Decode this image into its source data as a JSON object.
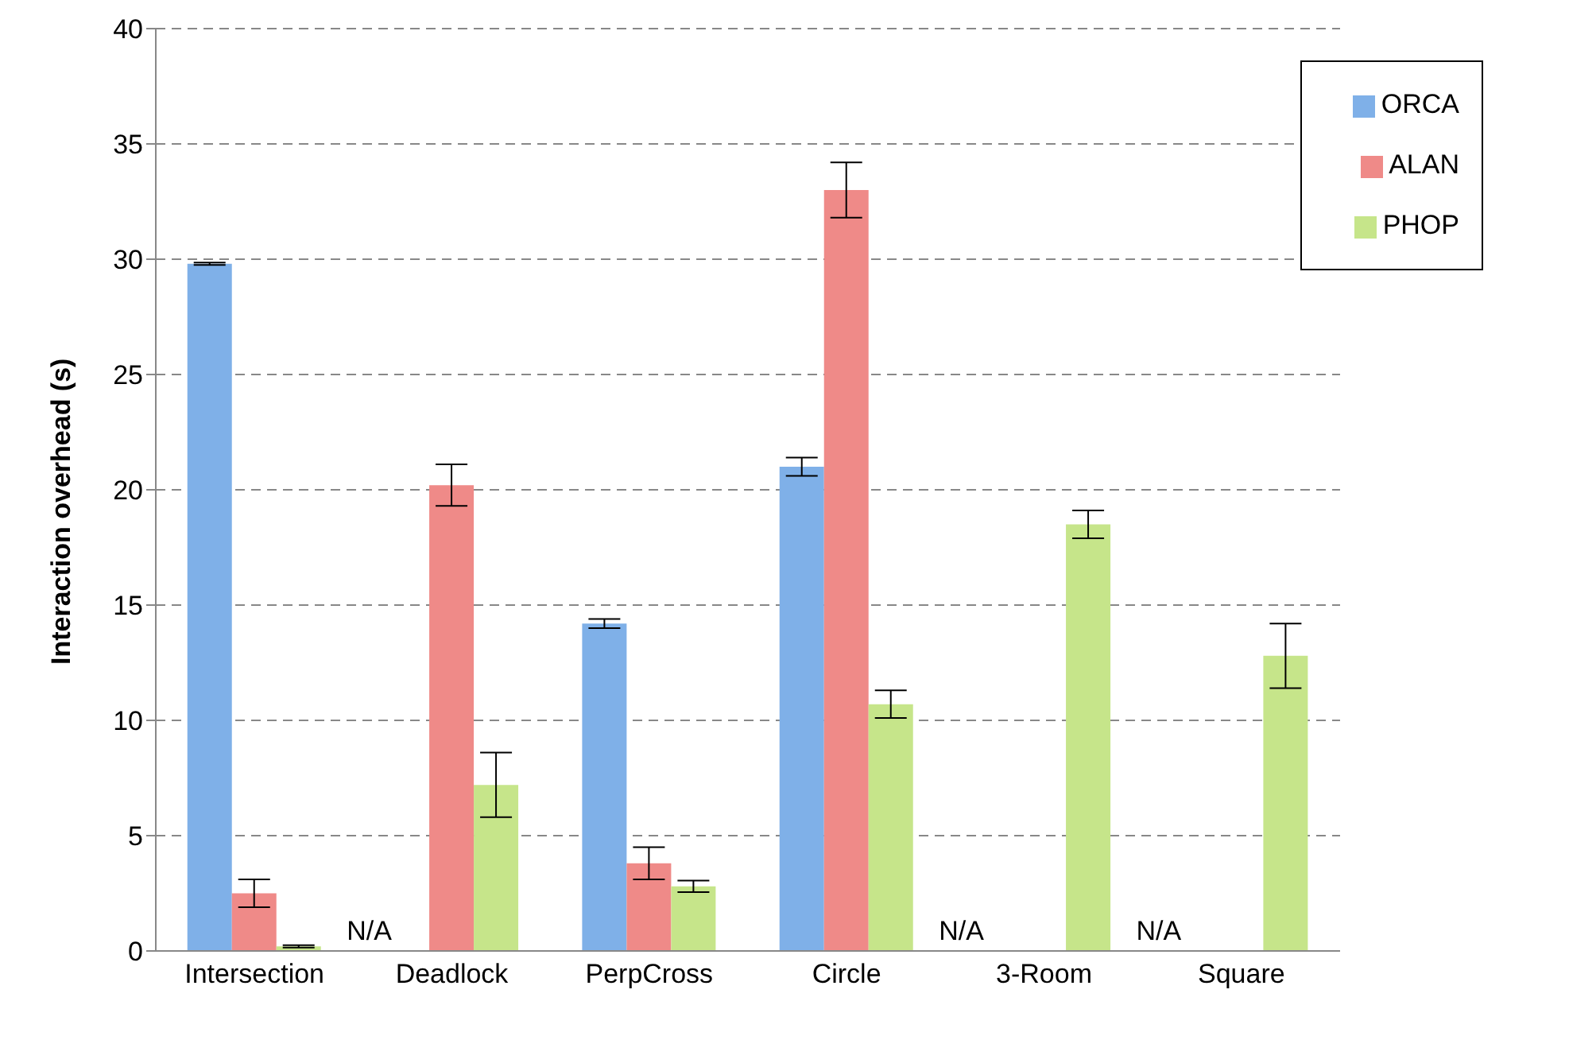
{
  "chart_data": {
    "type": "bar",
    "ylabel": "Interaction overhead (s)",
    "categories": [
      "Intersection",
      "Deadlock",
      "PerpCross",
      "Circle",
      "3-Room",
      "Square"
    ],
    "series": [
      {
        "name": "ORCA",
        "color": "#7fb0e8",
        "values": [
          29.8,
          null,
          14.2,
          21.0,
          null,
          null
        ],
        "errors": [
          0.05,
          null,
          0.2,
          0.4,
          null,
          null
        ]
      },
      {
        "name": "ALAN",
        "color": "#ef8a88",
        "values": [
          2.5,
          20.2,
          3.8,
          33.0,
          null,
          null
        ],
        "errors": [
          0.6,
          0.9,
          0.7,
          1.2,
          null,
          null
        ]
      },
      {
        "name": "PHOP",
        "color": "#c6e58a",
        "values": [
          0.2,
          7.2,
          2.8,
          10.7,
          18.5,
          12.8
        ],
        "errors": [
          0.05,
          1.4,
          0.25,
          0.6,
          0.6,
          1.4
        ]
      }
    ],
    "annotations": [
      "N/A",
      "N/A",
      "N/A"
    ],
    "ylim": [
      0,
      40
    ],
    "yticks": [
      0,
      5,
      10,
      15,
      20,
      25,
      30,
      35,
      40
    ],
    "grid": "y",
    "legend": "top right"
  }
}
